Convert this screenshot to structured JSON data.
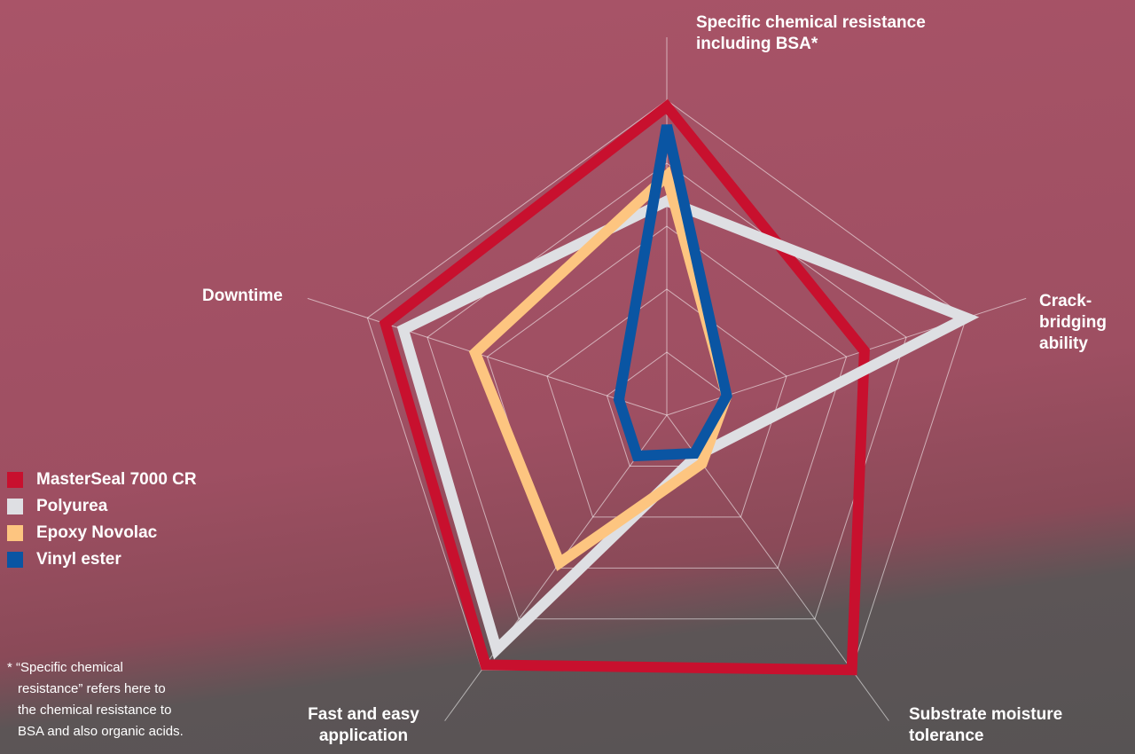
{
  "chart_data": {
    "type": "radar",
    "categories": [
      "Specific chemical resistance including BSA*",
      "Crack-bridging ability",
      "Substrate moisture tolerance",
      "Fast and easy application",
      "Downtime"
    ],
    "rlim": [
      0,
      5
    ],
    "rticks": [
      1,
      2,
      3,
      4,
      5
    ],
    "grid": true,
    "series": [
      {
        "name": "MasterSeal 7000 CR",
        "color": "#c8102e",
        "values": [
          4.9,
          3.3,
          5.0,
          4.9,
          4.7
        ]
      },
      {
        "name": "Polyurea",
        "color": "#dedfe3",
        "values": [
          3.4,
          5.0,
          0.8,
          4.6,
          4.4
        ]
      },
      {
        "name": "Epoxy Novolac",
        "color": "#fdc580",
        "values": [
          3.8,
          1.0,
          0.95,
          2.9,
          3.2
        ]
      },
      {
        "name": "Vinyl ester",
        "color": "#0a55a3",
        "values": [
          4.6,
          1.0,
          0.75,
          0.8,
          0.8
        ]
      }
    ],
    "footnote": "* “Specific chemical resistance” refers here to the chemical resistance to BSA and also organic acids."
  }
}
